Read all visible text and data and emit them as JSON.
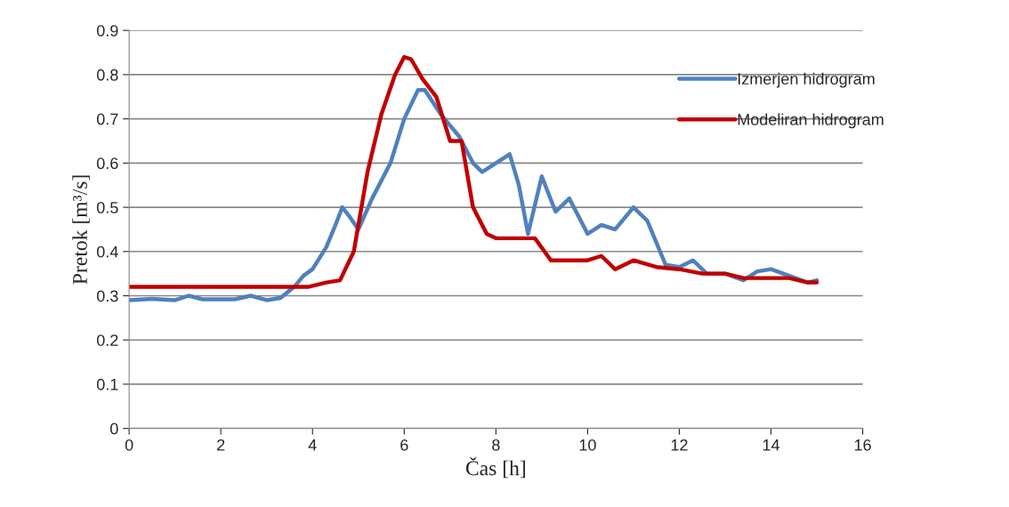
{
  "chart_data": {
    "type": "line",
    "xlabel": "Čas [h]",
    "ylabel": "Pretok [m³/s]",
    "xlim": [
      0,
      16
    ],
    "xticks": [
      0,
      2,
      4,
      6,
      8,
      10,
      12,
      14,
      16
    ],
    "ylim": [
      0,
      0.9
    ],
    "yticks": [
      0,
      0.1,
      0.2,
      0.3,
      0.4,
      0.5,
      0.6,
      0.7,
      0.8,
      0.9
    ],
    "grid": "y",
    "legend": "top right",
    "marker": "none",
    "line_style": "solid",
    "series": [
      {
        "name": "Izmerjen hidrogram",
        "color": "#4f81bd",
        "x": [
          0,
          0.5,
          1.0,
          1.3,
          1.6,
          2.0,
          2.3,
          2.65,
          3.0,
          3.3,
          3.6,
          3.8,
          4.0,
          4.3,
          4.5,
          4.65,
          4.8,
          5.0,
          5.3,
          5.7,
          6.0,
          6.3,
          6.45,
          6.8,
          7.2,
          7.5,
          7.7,
          8.0,
          8.3,
          8.5,
          8.7,
          9.0,
          9.3,
          9.6,
          10.0,
          10.3,
          10.6,
          11.0,
          11.3,
          11.7,
          12.0,
          12.3,
          12.6,
          13.0,
          13.4,
          13.7,
          14.0,
          14.4,
          14.8,
          15.0
        ],
        "values": [
          0.29,
          0.293,
          0.29,
          0.3,
          0.292,
          0.292,
          0.292,
          0.3,
          0.29,
          0.295,
          0.32,
          0.345,
          0.36,
          0.41,
          0.46,
          0.5,
          0.48,
          0.45,
          0.52,
          0.6,
          0.7,
          0.765,
          0.765,
          0.71,
          0.66,
          0.6,
          0.58,
          0.6,
          0.62,
          0.55,
          0.44,
          0.57,
          0.49,
          0.52,
          0.44,
          0.46,
          0.45,
          0.5,
          0.47,
          0.37,
          0.365,
          0.38,
          0.35,
          0.35,
          0.335,
          0.355,
          0.36,
          0.345,
          0.33,
          0.335
        ]
      },
      {
        "name": "Modeliran hidrogram",
        "color": "#c00000",
        "x": [
          0,
          3.9,
          4.3,
          4.6,
          4.9,
          5.2,
          5.5,
          5.8,
          6.0,
          6.15,
          6.4,
          6.7,
          7.0,
          7.25,
          7.5,
          7.8,
          8.0,
          8.5,
          8.85,
          9.2,
          9.5,
          10.0,
          10.3,
          10.6,
          11.0,
          11.5,
          12.0,
          12.5,
          13.0,
          13.4,
          14.0,
          14.4,
          14.8,
          15.0
        ],
        "values": [
          0.32,
          0.32,
          0.33,
          0.335,
          0.4,
          0.58,
          0.71,
          0.8,
          0.84,
          0.835,
          0.79,
          0.75,
          0.65,
          0.65,
          0.5,
          0.44,
          0.43,
          0.43,
          0.43,
          0.38,
          0.38,
          0.38,
          0.39,
          0.36,
          0.38,
          0.365,
          0.36,
          0.35,
          0.35,
          0.34,
          0.34,
          0.34,
          0.33,
          0.33
        ]
      }
    ]
  }
}
